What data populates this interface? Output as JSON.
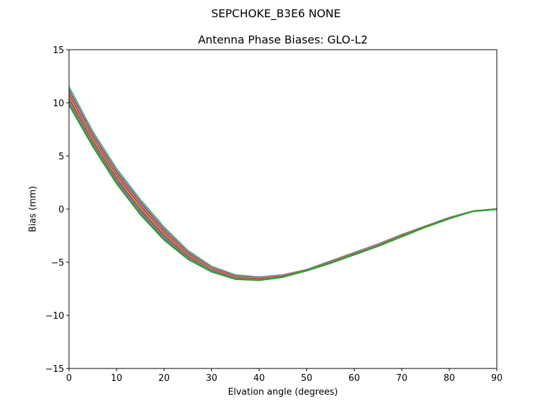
{
  "figure": {
    "suptitle": "SEPCHOKE_B3E6   NONE",
    "title": "Antenna Phase Biases: GLO-L2",
    "xlabel": "Elvation angle (degrees)",
    "ylabel": "Bias (mm)"
  },
  "chart_data": {
    "type": "line",
    "title": "Antenna Phase Biases: GLO-L2",
    "suptitle": "SEPCHOKE_B3E6   NONE",
    "xlabel": "Elvation angle (degrees)",
    "ylabel": "Bias (mm)",
    "xlim": [
      0,
      90
    ],
    "ylim": [
      -15,
      15
    ],
    "xticks": [
      0,
      10,
      20,
      30,
      40,
      50,
      60,
      70,
      80,
      90
    ],
    "yticks": [
      -15,
      -10,
      -5,
      0,
      5,
      10,
      15
    ],
    "grid": false,
    "legend": "none",
    "x": [
      0,
      5,
      10,
      15,
      20,
      25,
      30,
      35,
      40,
      45,
      50,
      55,
      60,
      65,
      70,
      75,
      80,
      85,
      90
    ],
    "envelope": {
      "upper": [
        11.5,
        7.3,
        3.8,
        0.9,
        -1.7,
        -3.9,
        -5.4,
        -6.2,
        -6.4,
        -6.2,
        -5.7,
        -4.9,
        -4.1,
        -3.3,
        -2.4,
        -1.6,
        -0.8,
        -0.2,
        0.0
      ],
      "lower": [
        9.8,
        5.9,
        2.4,
        -0.5,
        -2.9,
        -4.7,
        -5.9,
        -6.6,
        -6.7,
        -6.4,
        -5.8,
        -5.1,
        -4.3,
        -3.5,
        -2.6,
        -1.7,
        -0.9,
        -0.2,
        0.0
      ]
    },
    "series_count": 10,
    "series_colors": [
      "#1f77b4",
      "#ff7f0e",
      "#2ca02c",
      "#d62728",
      "#9467bd",
      "#8c564b",
      "#e377c2",
      "#7f7f7f",
      "#bcbd22",
      "#17becf"
    ],
    "note": "Dense band of overlapping per-azimuth curves spanning the envelope; top drawn layer appears green"
  }
}
